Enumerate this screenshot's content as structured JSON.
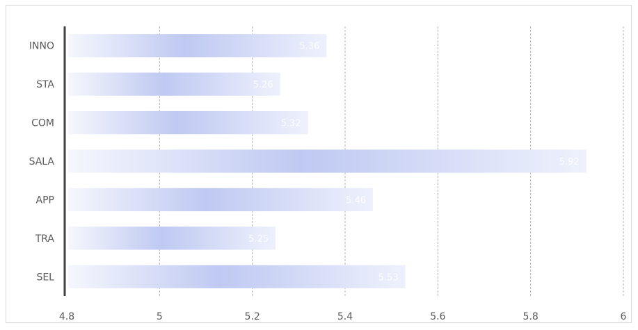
{
  "chart_data": {
    "type": "bar",
    "orientation": "horizontal",
    "categories": [
      "INNO",
      "STA",
      "COM",
      "SALA",
      "APP",
      "TRA",
      "SEL"
    ],
    "values": [
      5.36,
      5.26,
      5.32,
      5.92,
      5.46,
      5.25,
      5.53
    ],
    "data_labels": [
      "5.36",
      "5.26",
      "5.32",
      "5.92",
      "5.46",
      "5.25",
      "5.53"
    ],
    "title": "",
    "xlabel": "",
    "ylabel": "",
    "xlim": [
      4.8,
      6
    ],
    "x_ticks": [
      "4.8",
      "5",
      "5.2",
      "5.4",
      "5.6",
      "5.8",
      "6"
    ],
    "grid": true,
    "legend": "none",
    "colors": {
      "bar_light": "#f4f6fd",
      "bar_dark": "#bcc6f1",
      "grid": "#b3b3b3",
      "axis": "#404040",
      "text": "#595959"
    }
  }
}
